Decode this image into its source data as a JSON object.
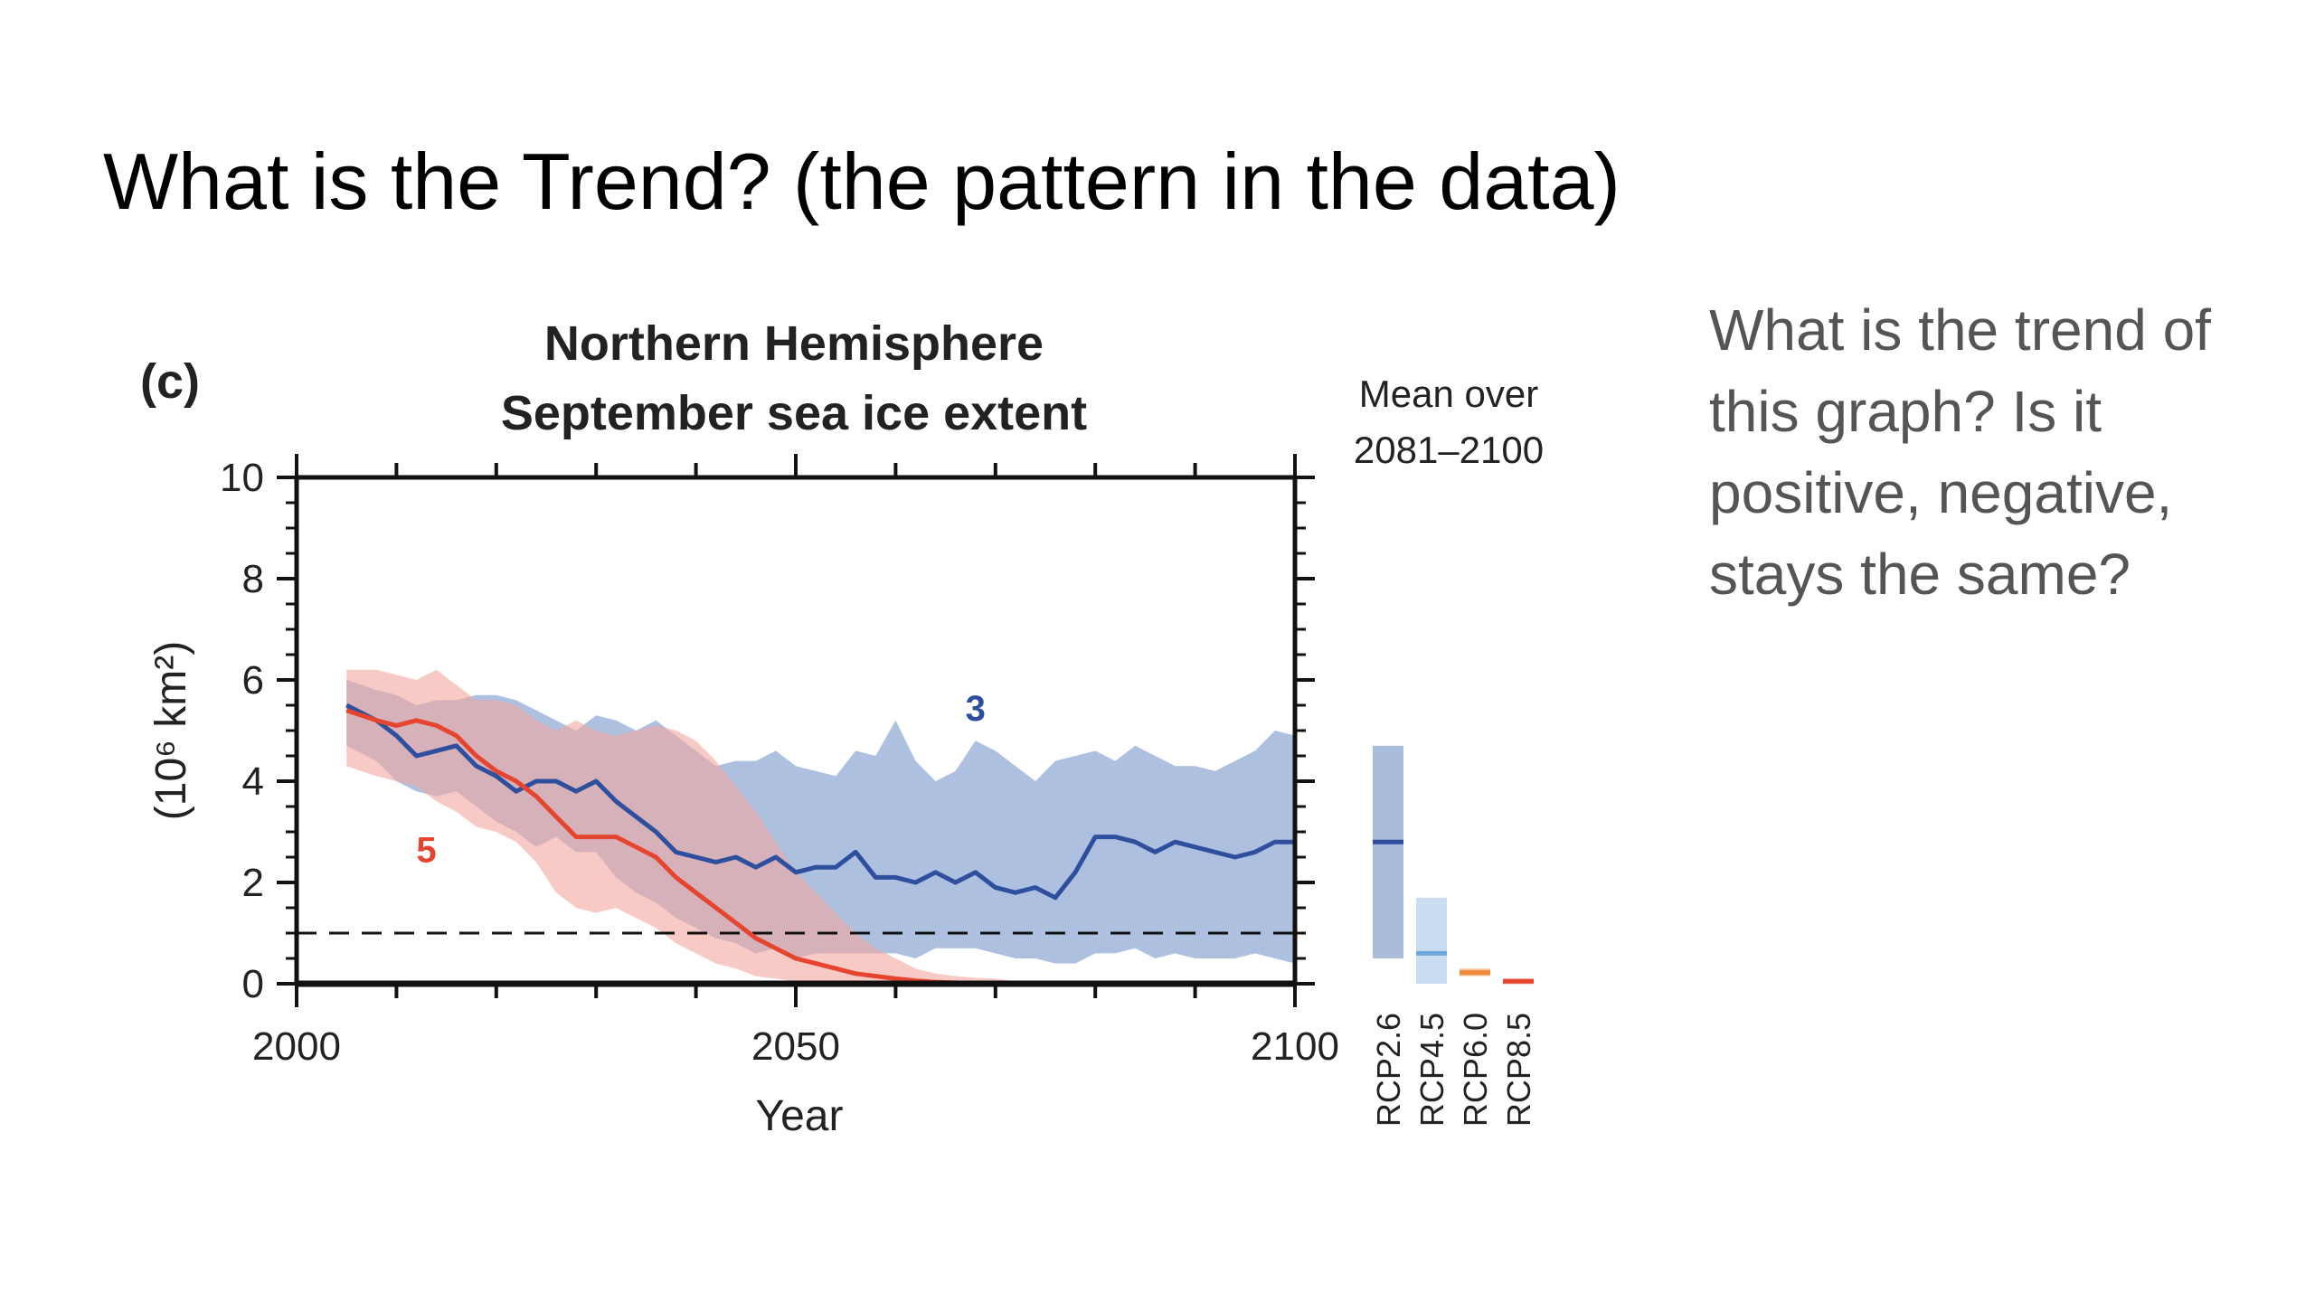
{
  "slide": {
    "title": "What is the Trend? (the pattern in the data)",
    "question": "What is the trend of this graph? Is it positive, negative, stays the same?"
  },
  "chart_data": {
    "type": "line",
    "panel_label": "(c)",
    "title_line1": "Northern Hemisphere",
    "title_line2": "September sea ice extent",
    "xlabel": "Year",
    "ylabel": "(10⁶ km²)",
    "xlim": [
      2000,
      2100
    ],
    "ylim": [
      0,
      10
    ],
    "x_ticks": [
      2000,
      2050,
      2100
    ],
    "y_ticks": [
      0,
      2,
      4,
      6,
      8,
      10
    ],
    "reference_line": {
      "y": 1.0,
      "style": "dashed"
    },
    "series": [
      {
        "name": "RCP2.6",
        "count_label": "3",
        "color": "#2e4f9e",
        "band_color": "#9fb5da",
        "x": [
          2005,
          2008,
          2010,
          2012,
          2014,
          2016,
          2018,
          2020,
          2022,
          2024,
          2026,
          2028,
          2030,
          2032,
          2034,
          2036,
          2038,
          2040,
          2042,
          2044,
          2046,
          2048,
          2050,
          2052,
          2054,
          2056,
          2058,
          2060,
          2062,
          2064,
          2066,
          2068,
          2070,
          2072,
          2074,
          2076,
          2078,
          2080,
          2082,
          2084,
          2086,
          2088,
          2090,
          2092,
          2094,
          2096,
          2098,
          2100
        ],
        "values": [
          5.5,
          5.2,
          4.9,
          4.5,
          4.6,
          4.7,
          4.3,
          4.1,
          3.8,
          4.0,
          4.0,
          3.8,
          4.0,
          3.6,
          3.3,
          3.0,
          2.6,
          2.5,
          2.4,
          2.5,
          2.3,
          2.5,
          2.2,
          2.3,
          2.3,
          2.6,
          2.1,
          2.1,
          2.0,
          2.2,
          2.0,
          2.2,
          1.9,
          1.8,
          1.9,
          1.7,
          2.2,
          2.9,
          2.9,
          2.8,
          2.6,
          2.8,
          2.7,
          2.6,
          2.5,
          2.6,
          2.8,
          2.8
        ],
        "lower": [
          4.7,
          4.4,
          4.0,
          3.8,
          3.7,
          3.8,
          3.5,
          3.2,
          3.0,
          2.7,
          2.9,
          2.6,
          2.6,
          2.1,
          1.8,
          1.6,
          1.3,
          1.1,
          0.9,
          0.8,
          0.6,
          0.7,
          0.5,
          0.6,
          0.6,
          0.6,
          0.6,
          0.6,
          0.5,
          0.7,
          0.7,
          0.7,
          0.6,
          0.5,
          0.5,
          0.4,
          0.4,
          0.6,
          0.6,
          0.7,
          0.5,
          0.6,
          0.5,
          0.5,
          0.5,
          0.6,
          0.5,
          0.4
        ],
        "upper": [
          6.0,
          5.8,
          5.7,
          5.5,
          5.6,
          5.6,
          5.7,
          5.7,
          5.6,
          5.4,
          5.2,
          5.0,
          5.3,
          5.2,
          5.0,
          5.2,
          4.9,
          4.6,
          4.3,
          4.4,
          4.4,
          4.6,
          4.3,
          4.2,
          4.1,
          4.6,
          4.5,
          5.2,
          4.4,
          4.0,
          4.2,
          4.8,
          4.6,
          4.3,
          4.0,
          4.4,
          4.5,
          4.6,
          4.4,
          4.7,
          4.5,
          4.3,
          4.3,
          4.2,
          4.4,
          4.6,
          5.0,
          4.9
        ]
      },
      {
        "name": "RCP8.5",
        "count_label": "5",
        "color": "#e5452f",
        "band_color": "#f3a79e",
        "x": [
          2005,
          2008,
          2010,
          2012,
          2014,
          2016,
          2018,
          2020,
          2022,
          2024,
          2026,
          2028,
          2030,
          2032,
          2034,
          2036,
          2038,
          2040,
          2042,
          2044,
          2046,
          2048,
          2050,
          2052,
          2054,
          2056,
          2058,
          2060,
          2062,
          2064,
          2066,
          2068,
          2070,
          2072,
          2074,
          2076,
          2078,
          2080
        ],
        "values": [
          5.4,
          5.2,
          5.1,
          5.2,
          5.1,
          4.9,
          4.5,
          4.2,
          4.0,
          3.7,
          3.3,
          2.9,
          2.9,
          2.9,
          2.7,
          2.5,
          2.1,
          1.8,
          1.5,
          1.2,
          0.9,
          0.7,
          0.5,
          0.4,
          0.3,
          0.2,
          0.15,
          0.1,
          0.06,
          0.03,
          0.02,
          0.01,
          0.0,
          0.0,
          0.0,
          0.0,
          0.0,
          0.0
        ],
        "lower": [
          4.3,
          4.1,
          4.0,
          3.9,
          3.6,
          3.4,
          3.1,
          3.0,
          2.8,
          2.4,
          1.8,
          1.5,
          1.4,
          1.5,
          1.3,
          1.1,
          0.8,
          0.6,
          0.4,
          0.3,
          0.15,
          0.1,
          0.05,
          0.02,
          0.0,
          0.0,
          0.0,
          0.0,
          0.0,
          0.0,
          0.0,
          0.0,
          0.0,
          0.0,
          0.0,
          0.0,
          0.0,
          0.0
        ],
        "upper": [
          6.2,
          6.2,
          6.1,
          6.0,
          6.2,
          5.9,
          5.6,
          5.6,
          5.5,
          5.2,
          5.0,
          5.2,
          5.0,
          4.9,
          5.0,
          5.1,
          5.0,
          4.8,
          4.4,
          3.9,
          3.4,
          2.8,
          2.2,
          1.8,
          1.4,
          1.0,
          0.7,
          0.5,
          0.3,
          0.2,
          0.15,
          0.12,
          0.1,
          0.05,
          0.03,
          0.0,
          0.0,
          0.0
        ]
      }
    ],
    "mean_panel": {
      "title_line1": "Mean over",
      "title_line2": "2081–2100",
      "bars": [
        {
          "label": "RCP2.6",
          "low": 0.5,
          "high": 4.7,
          "mean": 2.8,
          "fill": "#a9bcdc",
          "line": "#2e4f9e"
        },
        {
          "label": "RCP4.5",
          "low": 0.0,
          "high": 1.7,
          "mean": 0.6,
          "fill": "#c9dcf0",
          "line": "#6ea8dc"
        },
        {
          "label": "RCP6.0",
          "low": 0.15,
          "high": 0.3,
          "mean": 0.22,
          "fill": "#f9c6a0",
          "line": "#ef8a3a"
        },
        {
          "label": "RCP8.5",
          "low": 0.0,
          "high": 0.1,
          "mean": 0.05,
          "fill": "#f3a79e",
          "line": "#e5452f"
        }
      ]
    }
  }
}
